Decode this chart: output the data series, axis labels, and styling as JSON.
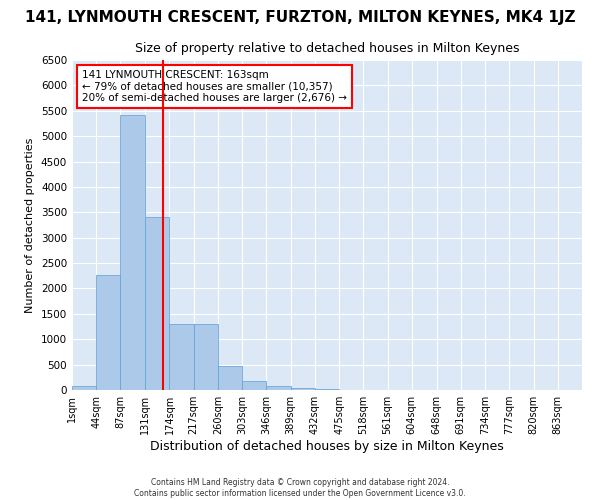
{
  "title": "141, LYNMOUTH CRESCENT, FURZTON, MILTON KEYNES, MK4 1JZ",
  "subtitle": "Size of property relative to detached houses in Milton Keynes",
  "xlabel": "Distribution of detached houses by size in Milton Keynes",
  "ylabel": "Number of detached properties",
  "footer_line1": "Contains HM Land Registry data © Crown copyright and database right 2024.",
  "footer_line2": "Contains public sector information licensed under the Open Government Licence v3.0.",
  "annotation_line1": "141 LYNMOUTH CRESCENT: 163sqm",
  "annotation_line2": "← 79% of detached houses are smaller (10,357)",
  "annotation_line3": "20% of semi-detached houses are larger (2,676) →",
  "property_size_sqm": 163,
  "bin_edges": [
    1,
    44,
    87,
    131,
    174,
    217,
    260,
    303,
    346,
    389,
    432,
    475,
    518,
    561,
    604,
    648,
    691,
    734,
    777,
    820,
    863
  ],
  "counts": [
    70,
    2260,
    5420,
    3400,
    1300,
    1300,
    480,
    170,
    80,
    45,
    10,
    5,
    2,
    1,
    1,
    0,
    0,
    0,
    0,
    0
  ],
  "bar_color": "#adc9e9",
  "bar_edge_color": "#5a9fd4",
  "vline_color": "red",
  "ylim": [
    0,
    6500
  ],
  "yticks": [
    0,
    500,
    1000,
    1500,
    2000,
    2500,
    3000,
    3500,
    4000,
    4500,
    5000,
    5500,
    6000,
    6500
  ],
  "plot_bg_color": "#dce8f5",
  "fig_bg_color": "#ffffff",
  "grid_color": "white",
  "annotation_box_facecolor": "white",
  "annotation_box_edgecolor": "red",
  "title_fontsize": 11,
  "subtitle_fontsize": 9,
  "ylabel_fontsize": 8,
  "xlabel_fontsize": 9
}
